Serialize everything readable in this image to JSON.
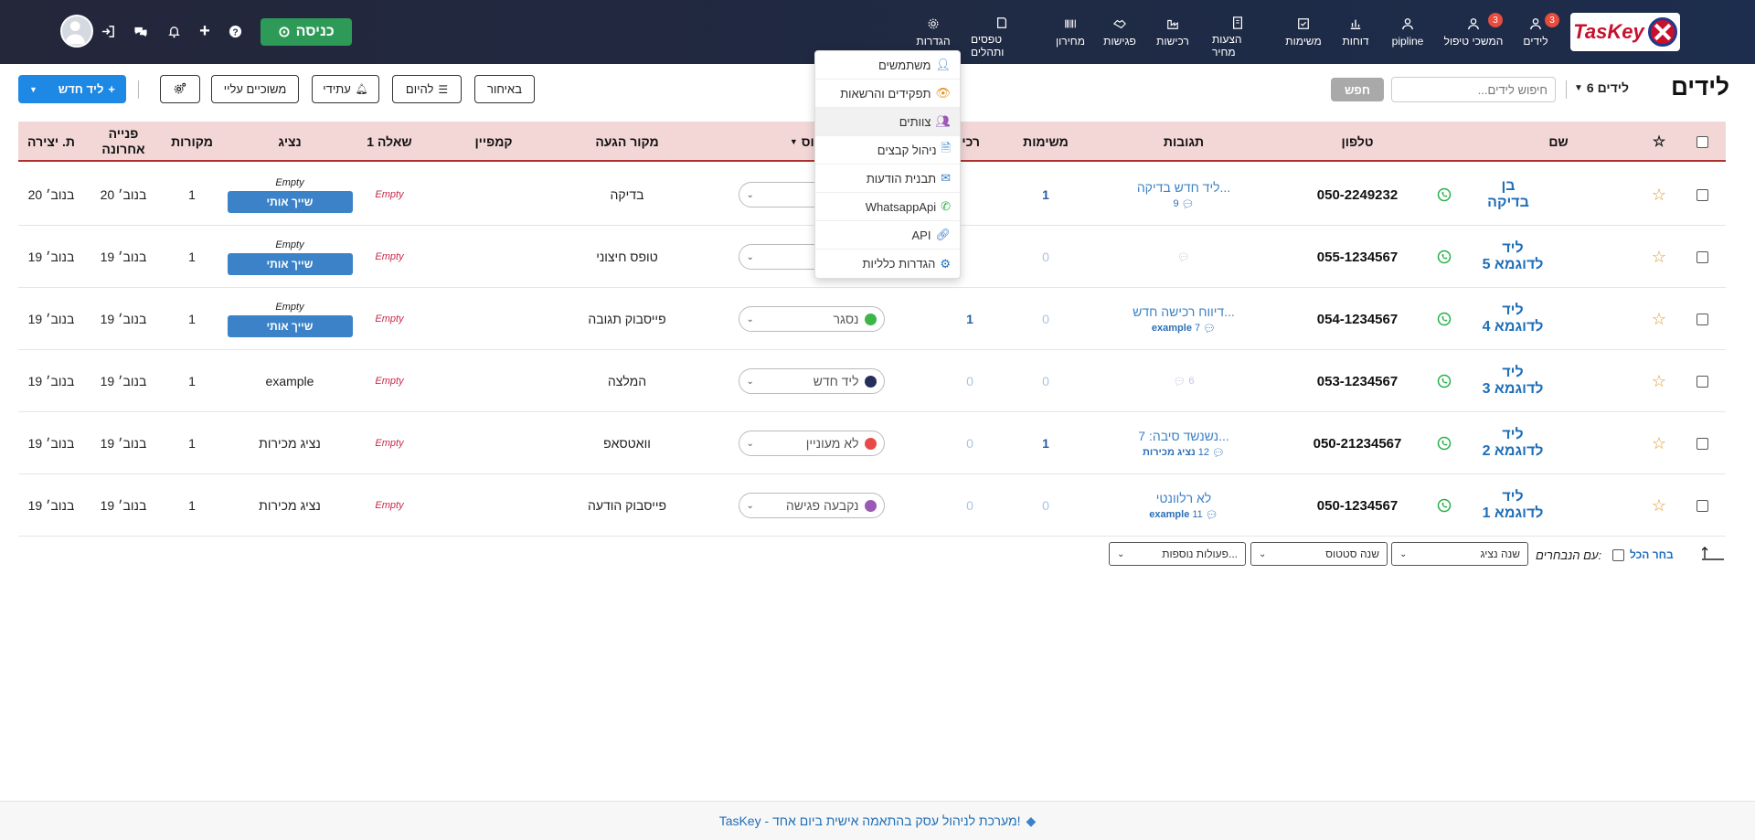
{
  "app": {
    "logo_text": "TasKey"
  },
  "nav": [
    {
      "label": "לידים",
      "badge": "3",
      "icon": "users-icon"
    },
    {
      "label": "המשכי טיפול",
      "badge": "3",
      "icon": "followup-icon"
    },
    {
      "label": "pipline",
      "icon": "pipeline-icon"
    },
    {
      "label": "דוחות",
      "icon": "chart-icon"
    },
    {
      "label": "משימות",
      "icon": "tasks-icon"
    },
    {
      "label": "הצעות מחיר",
      "icon": "quote-icon"
    },
    {
      "label": "רכישות",
      "icon": "purchase-icon"
    },
    {
      "label": "פגישות",
      "icon": "handshake-icon"
    },
    {
      "label": "מחירון",
      "icon": "barcode-icon"
    },
    {
      "label": "טפסים ותהלים",
      "icon": "forms-icon"
    },
    {
      "label": "הגדרות",
      "icon": "gear-icon"
    }
  ],
  "topbar": {
    "checkin_label": "כניסה"
  },
  "header": {
    "title": "לידים",
    "count_label": "6 לידים",
    "search_placeholder": "חיפוש לידים...",
    "search_button": "חפש"
  },
  "toolbar": {
    "late": "באיחור",
    "today": "להיום",
    "future": "עתידי",
    "assigned": "משוכיים עליי",
    "new_lead": "ליד חדש"
  },
  "columns": {
    "name": "שם",
    "phone": "טלפון",
    "replies": "תגובות",
    "tasks": "משימות",
    "purchases": "רכי",
    "status": "טטוס",
    "source": "מקור הגעה",
    "campaign": "קמפיין",
    "question": "שאלה 1",
    "agent": "נציג",
    "sources": "מקורות",
    "last_contact": "פנייה אחרונה",
    "created": "ת. יצירה"
  },
  "rows": [
    {
      "name": "בן בדיקה",
      "phone": "050-2249232",
      "reply_text": "ליד חדש בדיקה...",
      "reply_count": "9",
      "reply_author": "",
      "tasks": "1",
      "purchases": "",
      "status": "",
      "status_color": "",
      "source": "בדיקה",
      "question": "Empty",
      "agent_top": "Empty",
      "assign": "שייך אותי",
      "sources": "1",
      "last": "20 בנוב׳",
      "created": "20 בנוב׳"
    },
    {
      "name": "ליד לדוגמא 5",
      "phone": "055-1234567",
      "reply_text": "",
      "reply_count": "",
      "reply_author": "",
      "tasks": "0",
      "purchases": "",
      "status": "",
      "status_color": "",
      "source": "טופס חיצוני",
      "question": "Empty",
      "agent_top": "Empty",
      "assign": "שייך אותי",
      "sources": "1",
      "last": "19 בנוב׳",
      "created": "19 בנוב׳"
    },
    {
      "name": "ליד לדוגמא 4",
      "phone": "054-1234567",
      "reply_text": "דיווח רכישה חדש...",
      "reply_count": "7",
      "reply_author": "example",
      "tasks": "0",
      "purchases": "1",
      "status": "נסגר",
      "status_color": "#3cb54a",
      "source": "פייסבוק תגובה",
      "question": "Empty",
      "agent_top": "Empty",
      "assign": "שייך אותי",
      "sources": "1",
      "last": "19 בנוב׳",
      "created": "19 בנוב׳"
    },
    {
      "name": "ליד לדוגמא 3",
      "phone": "053-1234567",
      "reply_text": "",
      "reply_count": "6",
      "reply_author": "",
      "tasks": "0",
      "purchases": "0",
      "status": "ליד חדש",
      "status_color": "#23305c",
      "source": "המלצה",
      "question": "Empty",
      "agent": "example",
      "sources": "1",
      "last": "19 בנוב׳",
      "created": "19 בנוב׳"
    },
    {
      "name": "ליד לדוגמא 2",
      "phone": "050-21234567",
      "reply_text": "נשנשד סיבה: 7...",
      "reply_count": "12",
      "reply_author": "נציג מכירות",
      "tasks": "1",
      "purchases": "0",
      "status": "לא מעוניין",
      "status_color": "#e84a4a",
      "source": "וואטסאפ",
      "question": "Empty",
      "agent": "נציג מכירות",
      "sources": "1",
      "last": "19 בנוב׳",
      "created": "19 בנוב׳"
    },
    {
      "name": "ליד לדוגמא 1",
      "phone": "050-1234567",
      "reply_text": "לא רלוונטי",
      "reply_count": "11",
      "reply_author": "example",
      "tasks": "0",
      "purchases": "0",
      "status": "נקבעה פגישה",
      "status_color": "#9b59b6",
      "source": "פייסבוק הודעה",
      "question": "Empty",
      "agent": "נציג מכירות",
      "sources": "1",
      "last": "19 בנוב׳",
      "created": "19 בנוב׳"
    }
  ],
  "bulk": {
    "with_selected": "עם הנבחרים:",
    "select_all": "בחר הכל",
    "change_agent": "שנה נציג",
    "change_status": "שנה סטטוס",
    "more_actions": "פעולות נוספות..."
  },
  "menu": [
    {
      "label": "משתמשים",
      "icon": "users-icon",
      "color": "#3b82c8"
    },
    {
      "label": "תפקידים והרשאות",
      "icon": "eye-icon",
      "color": "#e6962a"
    },
    {
      "label": "צוותים",
      "icon": "team-icon",
      "color": "#9b59b6"
    },
    {
      "label": "ניהול קבצים",
      "icon": "file-icon",
      "color": "#3b82c8"
    },
    {
      "label": "תבנית הודעות",
      "icon": "envelope-icon",
      "color": "#3b82c8"
    },
    {
      "label": "WhatsappApi",
      "icon": "whatsapp-icon",
      "color": "#25b04a"
    },
    {
      "label": "API",
      "icon": "link-icon",
      "color": "#3b82c8"
    },
    {
      "label": "הגדרות כלליות",
      "icon": "gear-icon",
      "color": "#1e6eb8"
    }
  ],
  "footer": {
    "text": "TasKey - מערכת לניהול עסק בהתאמה אישית ביום אחד!"
  }
}
